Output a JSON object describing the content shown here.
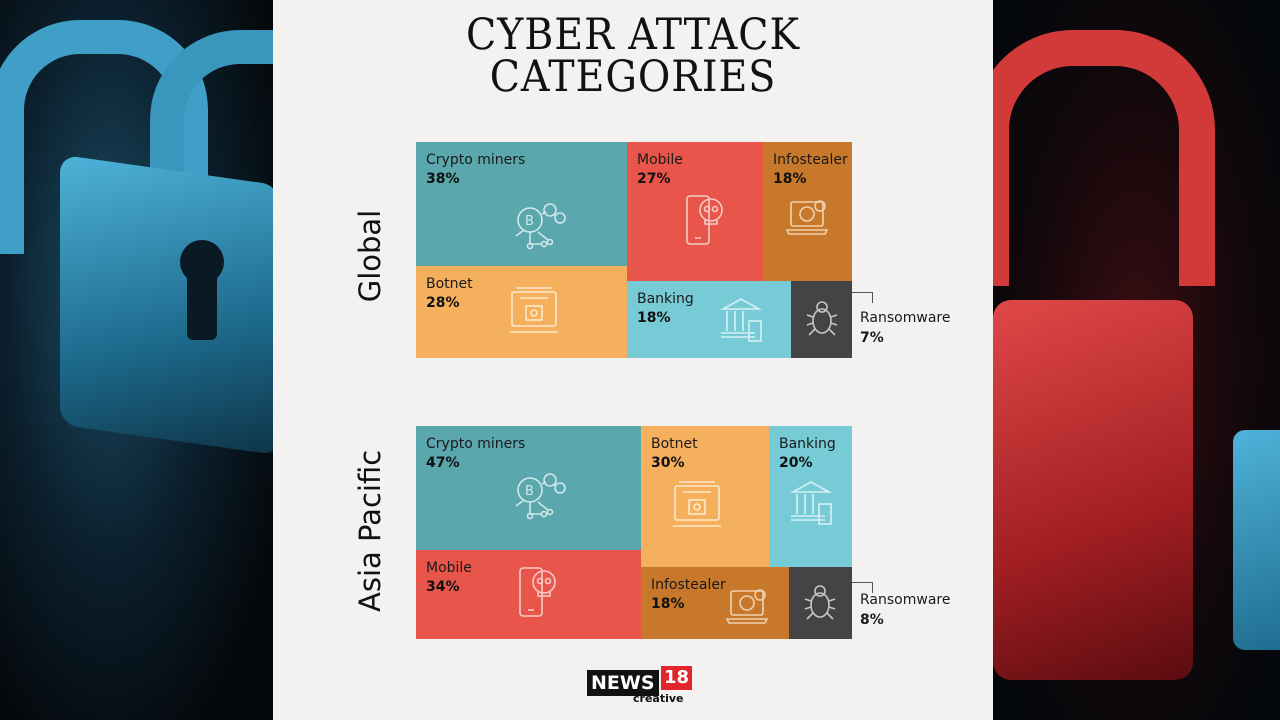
{
  "title_lines": [
    "CYBER ATTACK",
    "CATEGORIES"
  ],
  "colors": {
    "teal": "#5aa7ad",
    "red": "#e8554a",
    "brown": "#c8782a",
    "orange": "#f5b05e",
    "light_blue": "#76cbd7",
    "dark_gray": "#444444",
    "panel_bg": "#f3f2f0"
  },
  "chart_data": [
    {
      "type": "treemap",
      "region": "Global",
      "items": [
        {
          "label": "Crypto miners",
          "value": "38%",
          "color": "teal",
          "icon": "bitcoin-network-icon"
        },
        {
          "label": "Mobile",
          "value": "27%",
          "color": "red",
          "icon": "phone-skull-icon"
        },
        {
          "label": "Infostealer",
          "value": "18%",
          "color": "brown",
          "icon": "laptop-skull-icon"
        },
        {
          "label": "Botnet",
          "value": "28%",
          "color": "orange",
          "icon": "botnet-server-icon"
        },
        {
          "label": "Banking",
          "value": "18%",
          "color": "light_blue",
          "icon": "bank-icon"
        },
        {
          "label": "Ransomware",
          "value": "7%",
          "color": "dark_gray",
          "icon": "bug-icon"
        }
      ]
    },
    {
      "type": "treemap",
      "region": "Asia Pacific",
      "items": [
        {
          "label": "Crypto miners",
          "value": "47%",
          "color": "teal",
          "icon": "bitcoin-network-icon"
        },
        {
          "label": "Botnet",
          "value": "30%",
          "color": "orange",
          "icon": "botnet-server-icon"
        },
        {
          "label": "Banking",
          "value": "20%",
          "color": "light_blue",
          "icon": "bank-icon"
        },
        {
          "label": "Mobile",
          "value": "34%",
          "color": "red",
          "icon": "phone-skull-icon"
        },
        {
          "label": "Infostealer",
          "value": "18%",
          "color": "brown",
          "icon": "laptop-skull-icon"
        },
        {
          "label": "Ransomware",
          "value": "8%",
          "color": "dark_gray",
          "icon": "bug-icon"
        }
      ]
    }
  ],
  "logo": {
    "brand": "NEWS",
    "number": "18",
    "sub": "creative"
  }
}
